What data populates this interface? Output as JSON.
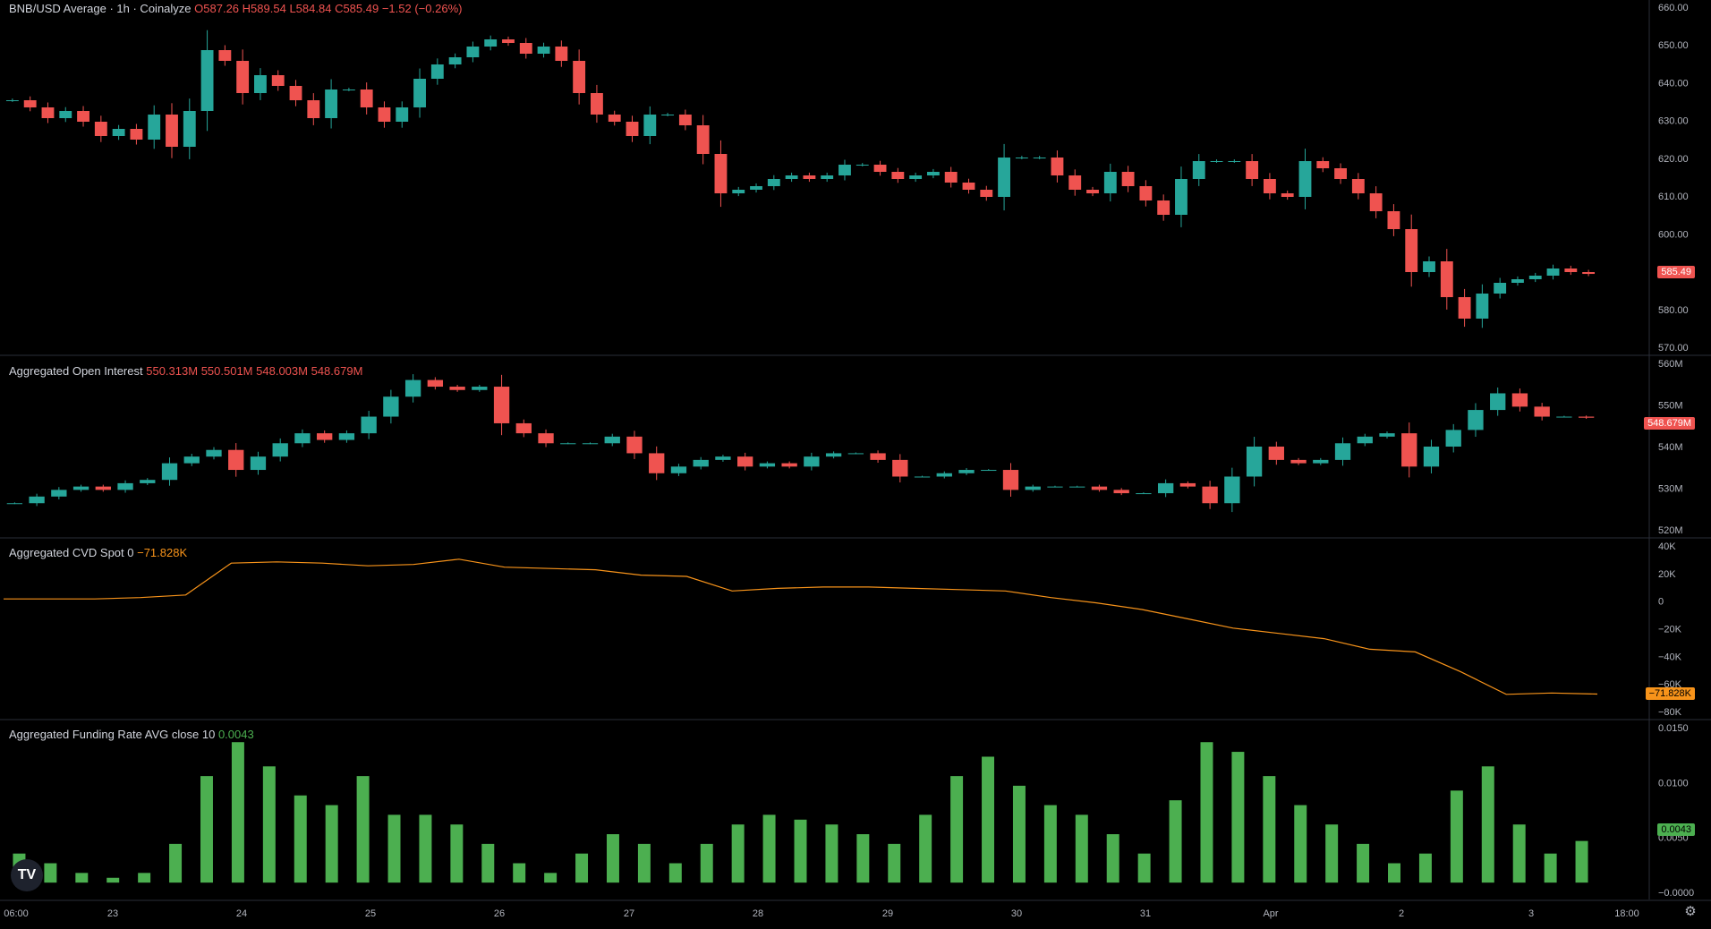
{
  "panels": {
    "price": {
      "title": "BNB/USD Average · 1h · Coinalyze",
      "o": "O587.26",
      "h": "H589.54",
      "l": "L584.84",
      "c": "C585.49",
      "chg": "−1.52 (−0.26%)",
      "last_tag": "585.49"
    },
    "oi": {
      "title": "Aggregated Open Interest",
      "v1": "550.313M",
      "v2": "550.501M",
      "v3": "548.003M",
      "v4": "548.679M",
      "last_tag": "548.679M"
    },
    "cvd": {
      "title": "Aggregated CVD Spot 0",
      "value": "−71.828K",
      "last_tag": "−71.828K"
    },
    "funding": {
      "title": "Aggregated Funding Rate AVG close 10",
      "value": "0.0043",
      "last_tag": "0.0043"
    }
  },
  "x_ticks": [
    "06:00",
    "23",
    "24",
    "25",
    "26",
    "27",
    "28",
    "29",
    "30",
    "31",
    "Apr",
    "2",
    "3",
    "18:00"
  ],
  "colors": {
    "up": "#26a69a",
    "down": "#ef5350",
    "cvd": "#f7931a",
    "funding": "#4caf50"
  },
  "chart_data": [
    {
      "type": "candlestick",
      "title": "BNB/USD Average · 1h · Coinalyze",
      "ylim": [
        565,
        660
      ],
      "y_ticks": [
        "660.00",
        "650.00",
        "640.00",
        "630.00",
        "620.00",
        "610.00",
        "600.00",
        "590.00",
        "580.00",
        "570.00"
      ],
      "close_series": [
        634,
        632,
        629,
        631,
        628,
        624,
        626,
        623,
        630,
        621,
        631,
        648,
        645,
        636,
        641,
        638,
        634,
        629,
        637,
        637,
        632,
        628,
        632,
        640,
        644,
        646,
        649,
        651,
        650,
        647,
        649,
        645,
        636,
        630,
        628,
        624,
        630,
        630,
        627,
        619,
        608,
        609,
        610,
        612,
        613,
        612,
        613,
        616,
        616,
        614,
        612,
        613,
        614,
        611,
        609,
        607,
        618,
        618,
        618,
        613,
        609,
        608,
        614,
        610,
        606,
        602,
        612,
        617,
        617,
        617,
        612,
        608,
        607,
        617,
        615,
        612,
        608,
        603,
        598,
        586,
        589,
        579,
        573,
        580,
        583,
        584,
        585,
        587,
        586,
        585.49
      ]
    },
    {
      "type": "candlestick",
      "title": "Aggregated Open Interest",
      "ylim": [
        515,
        565
      ],
      "y_ticks": [
        "560M",
        "550M",
        "540M",
        "530M",
        "520M"
      ],
      "close_series": [
        523,
        525,
        527,
        528,
        527,
        529,
        530,
        535,
        537,
        539,
        533,
        537,
        541,
        544,
        542,
        544,
        549,
        555,
        560,
        558,
        557,
        558,
        547,
        544,
        541,
        541,
        541,
        543,
        538,
        532,
        534,
        536,
        537,
        534,
        535,
        534,
        537,
        538,
        538,
        536,
        531,
        531,
        532,
        533,
        533,
        527,
        528,
        528,
        528,
        527,
        526,
        526,
        529,
        528,
        523,
        531,
        540,
        536,
        535,
        536,
        541,
        543,
        544,
        534,
        540,
        545,
        551,
        556,
        552,
        549,
        549,
        548.679
      ]
    },
    {
      "type": "line",
      "title": "Aggregated CVD Spot 0",
      "ylim": [
        -85000,
        40000
      ],
      "y_ticks": [
        "40K",
        "20K",
        "0",
        "−20K",
        "−40K",
        "−60K",
        "−80K"
      ],
      "y": [
        0,
        0,
        0,
        1000,
        3000,
        27000,
        28000,
        27000,
        25000,
        26000,
        30000,
        24000,
        23000,
        22000,
        18000,
        17000,
        6000,
        8000,
        9000,
        9000,
        8000,
        7000,
        6000,
        1000,
        -3000,
        -8000,
        -15000,
        -22000,
        -26000,
        -30000,
        -38000,
        -40000,
        -55000,
        -72000,
        -71000,
        -71828
      ]
    },
    {
      "type": "bar",
      "title": "Aggregated Funding Rate AVG close 10",
      "ylim": [
        -0.001,
        0.016
      ],
      "y_ticks": [
        "0.0150",
        "0.0100",
        "0.0050",
        "−0.0000"
      ],
      "values": [
        0.003,
        0.002,
        0.001,
        0.0005,
        0.001,
        0.004,
        0.011,
        0.0145,
        0.012,
        0.009,
        0.008,
        0.011,
        0.007,
        0.007,
        0.006,
        0.004,
        0.002,
        0.001,
        0.003,
        0.005,
        0.004,
        0.002,
        0.004,
        0.006,
        0.007,
        0.0065,
        0.006,
        0.005,
        0.004,
        0.007,
        0.011,
        0.013,
        0.01,
        0.008,
        0.007,
        0.005,
        0.003,
        0.0085,
        0.0145,
        0.0135,
        0.011,
        0.008,
        0.006,
        0.004,
        0.002,
        0.003,
        0.0095,
        0.012,
        0.006,
        0.003,
        0.0043
      ]
    }
  ]
}
